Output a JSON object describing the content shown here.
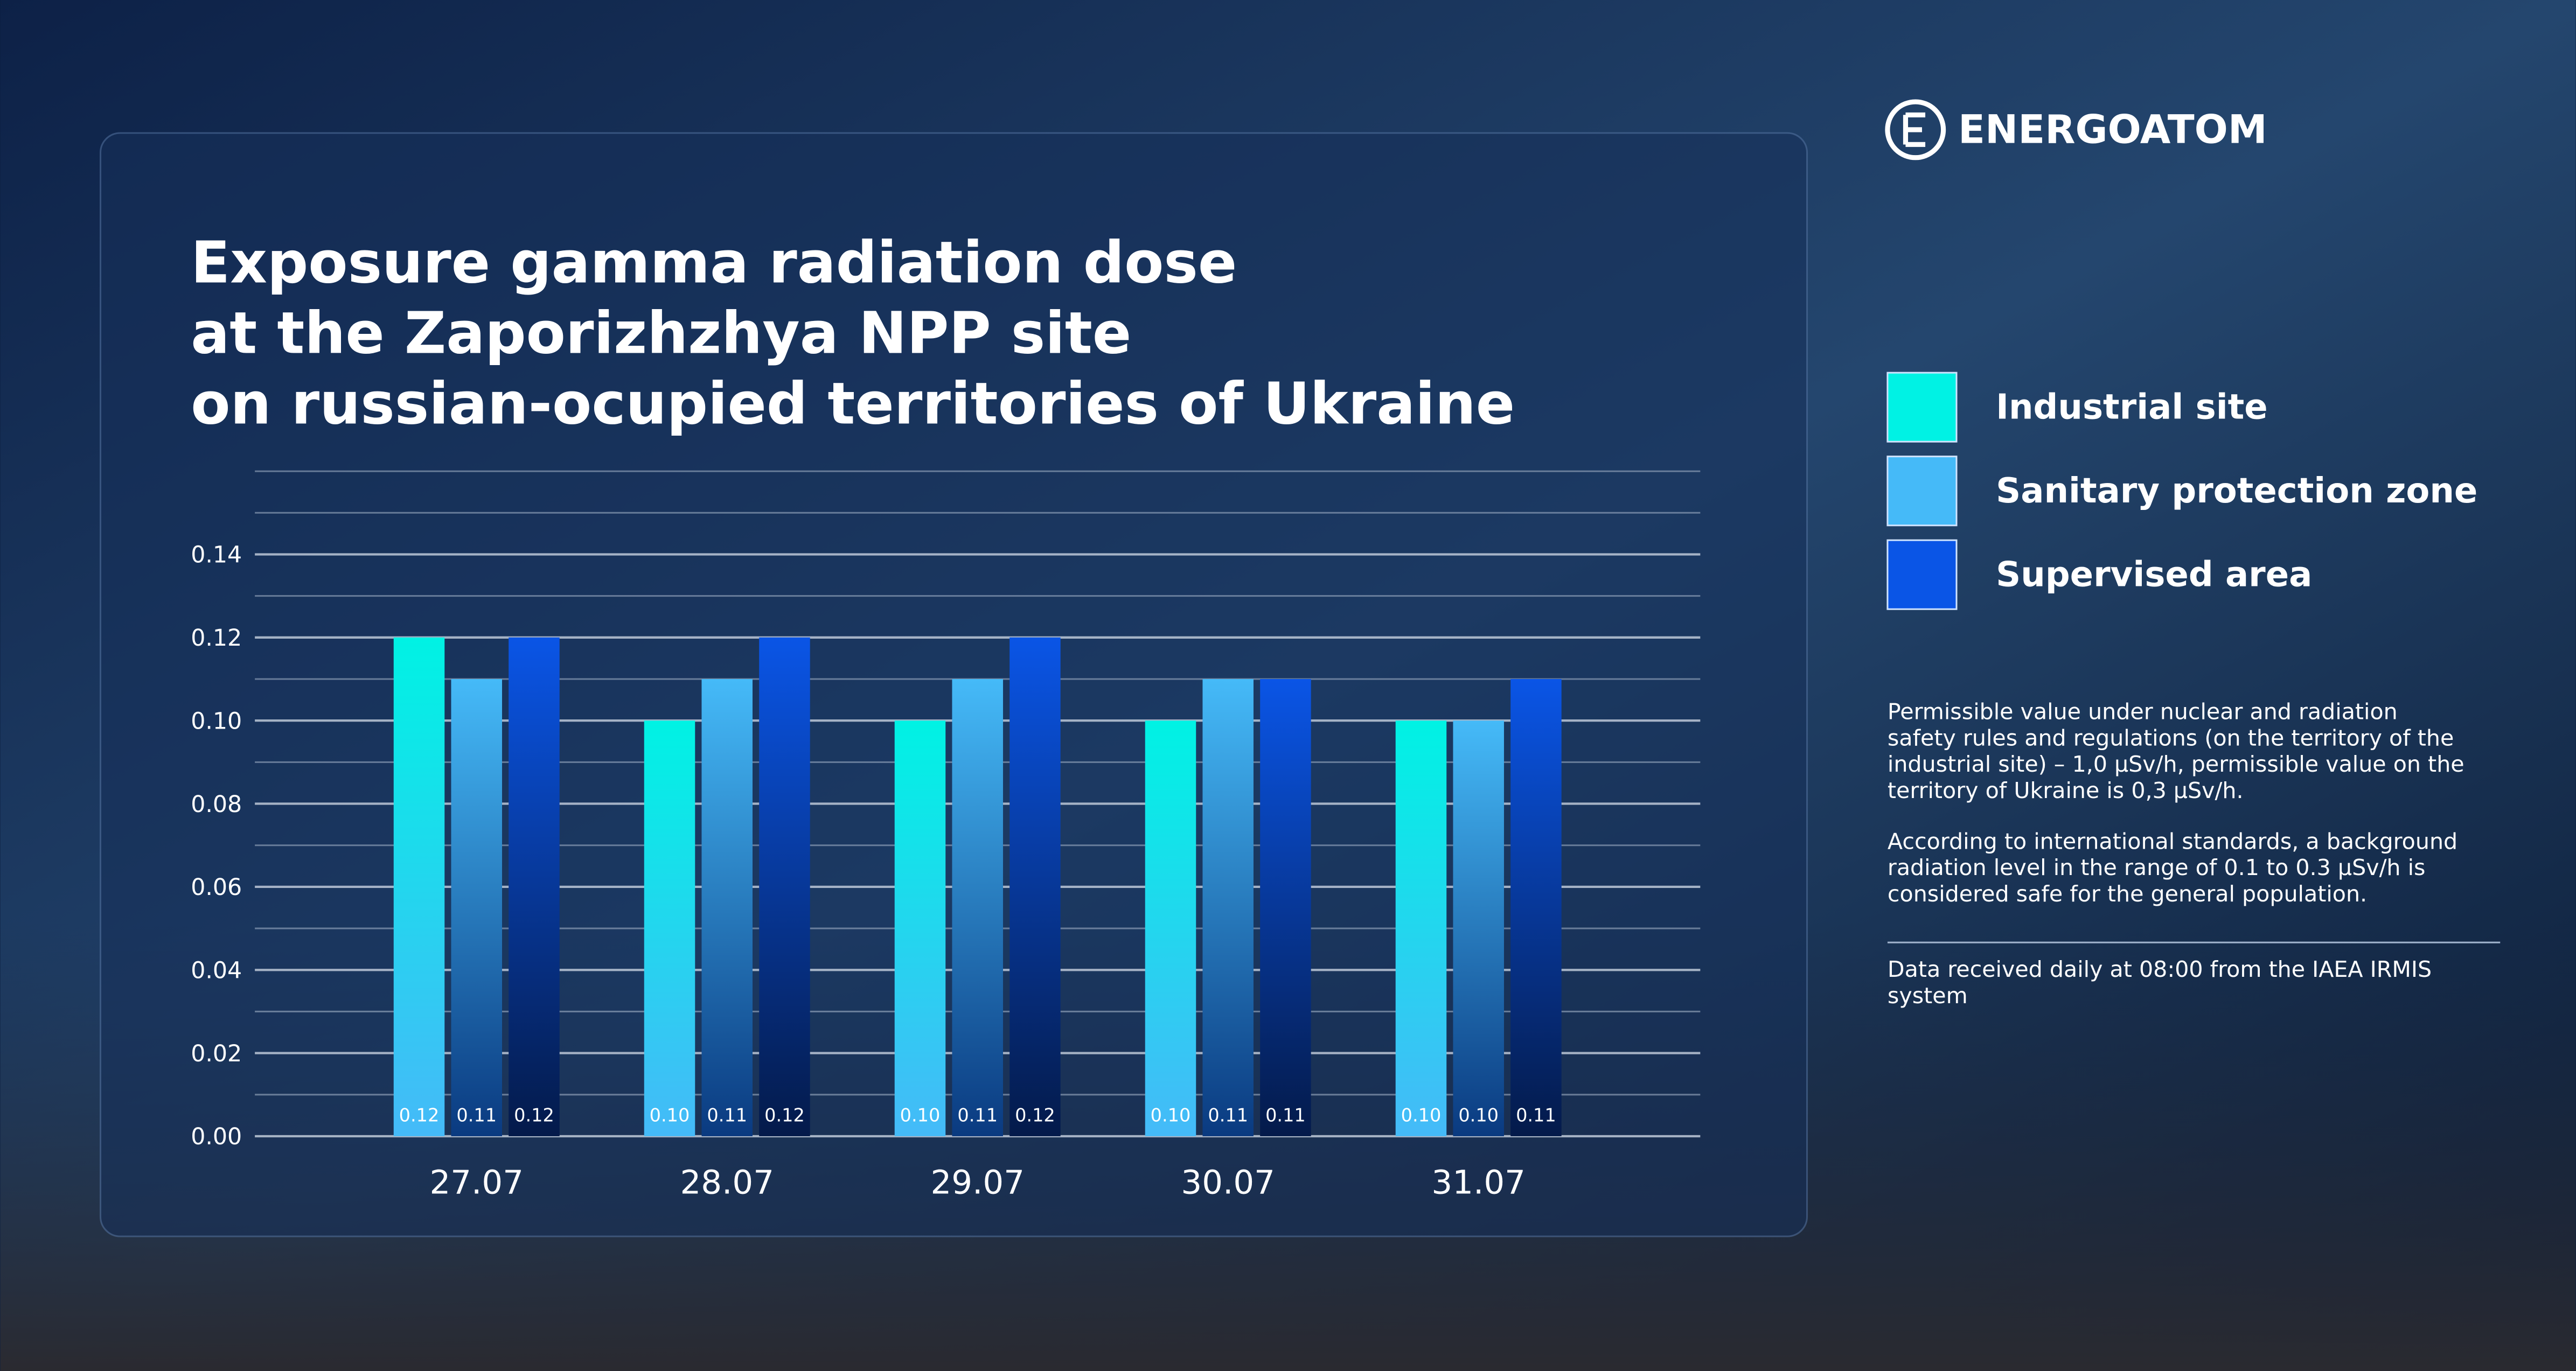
{
  "brand": "ENERGOATOM",
  "chart_data": {
    "type": "bar",
    "title_lines": [
      "Exposure gamma radiation dose",
      "at the Zaporizhzhya NPP site",
      "on russian-ocupied territories of Ukraine"
    ],
    "categories": [
      "27.07",
      "28.07",
      "29.07",
      "30.07",
      "31.07"
    ],
    "series": [
      {
        "name": "Industrial site",
        "color": "#00f2e4",
        "values": [
          0.12,
          0.1,
          0.1,
          0.1,
          0.1
        ],
        "value_labels": [
          "0.12",
          "0.10",
          "0.10",
          "0.10",
          "0.10"
        ]
      },
      {
        "name": "Sanitary protection zone",
        "color": "#45baf8",
        "values": [
          0.11,
          0.11,
          0.11,
          0.11,
          0.1
        ],
        "value_labels": [
          "0.11",
          "0.11",
          "0.11",
          "0.11",
          "0.10"
        ]
      },
      {
        "name": "Supervised area",
        "color": "#0a55e6",
        "values": [
          0.12,
          0.12,
          0.12,
          0.11,
          0.11
        ],
        "value_labels": [
          "0.12",
          "0.12",
          "0.12",
          "0.11",
          "0.11"
        ]
      }
    ],
    "ylim": [
      0,
      0.16
    ],
    "yticks": [
      {
        "value": 0,
        "label": "0.00"
      },
      {
        "value": 0.02,
        "label": "0.02"
      },
      {
        "value": 0.04,
        "label": "0.04"
      },
      {
        "value": 0.06,
        "label": "0.06"
      },
      {
        "value": 0.08,
        "label": "0.08"
      },
      {
        "value": 0.1,
        "label": "0.10"
      },
      {
        "value": 0.12,
        "label": "0.12"
      },
      {
        "value": 0.14,
        "label": "0.14"
      }
    ],
    "minor_yticks": [
      0.01,
      0.03,
      0.05,
      0.07,
      0.09,
      0.11,
      0.13,
      0.15,
      0.16
    ],
    "grid": true,
    "legend": "right"
  },
  "notes": [
    [
      "Permissible value under nuclear and radiation",
      "safety rules and regulations (on the territory of the",
      "industrial site) – 1,0 μSv/h, permissible value on the",
      "territory of Ukraine is 0,3 μSv/h."
    ],
    [
      "According to international standards, a background",
      "radiation level in the range of 0.1 to 0.3 μSv/h is",
      "considered safe for the general population."
    ],
    [
      "Data received daily at 08:00 from the IAEA IRMIS",
      "system"
    ]
  ]
}
